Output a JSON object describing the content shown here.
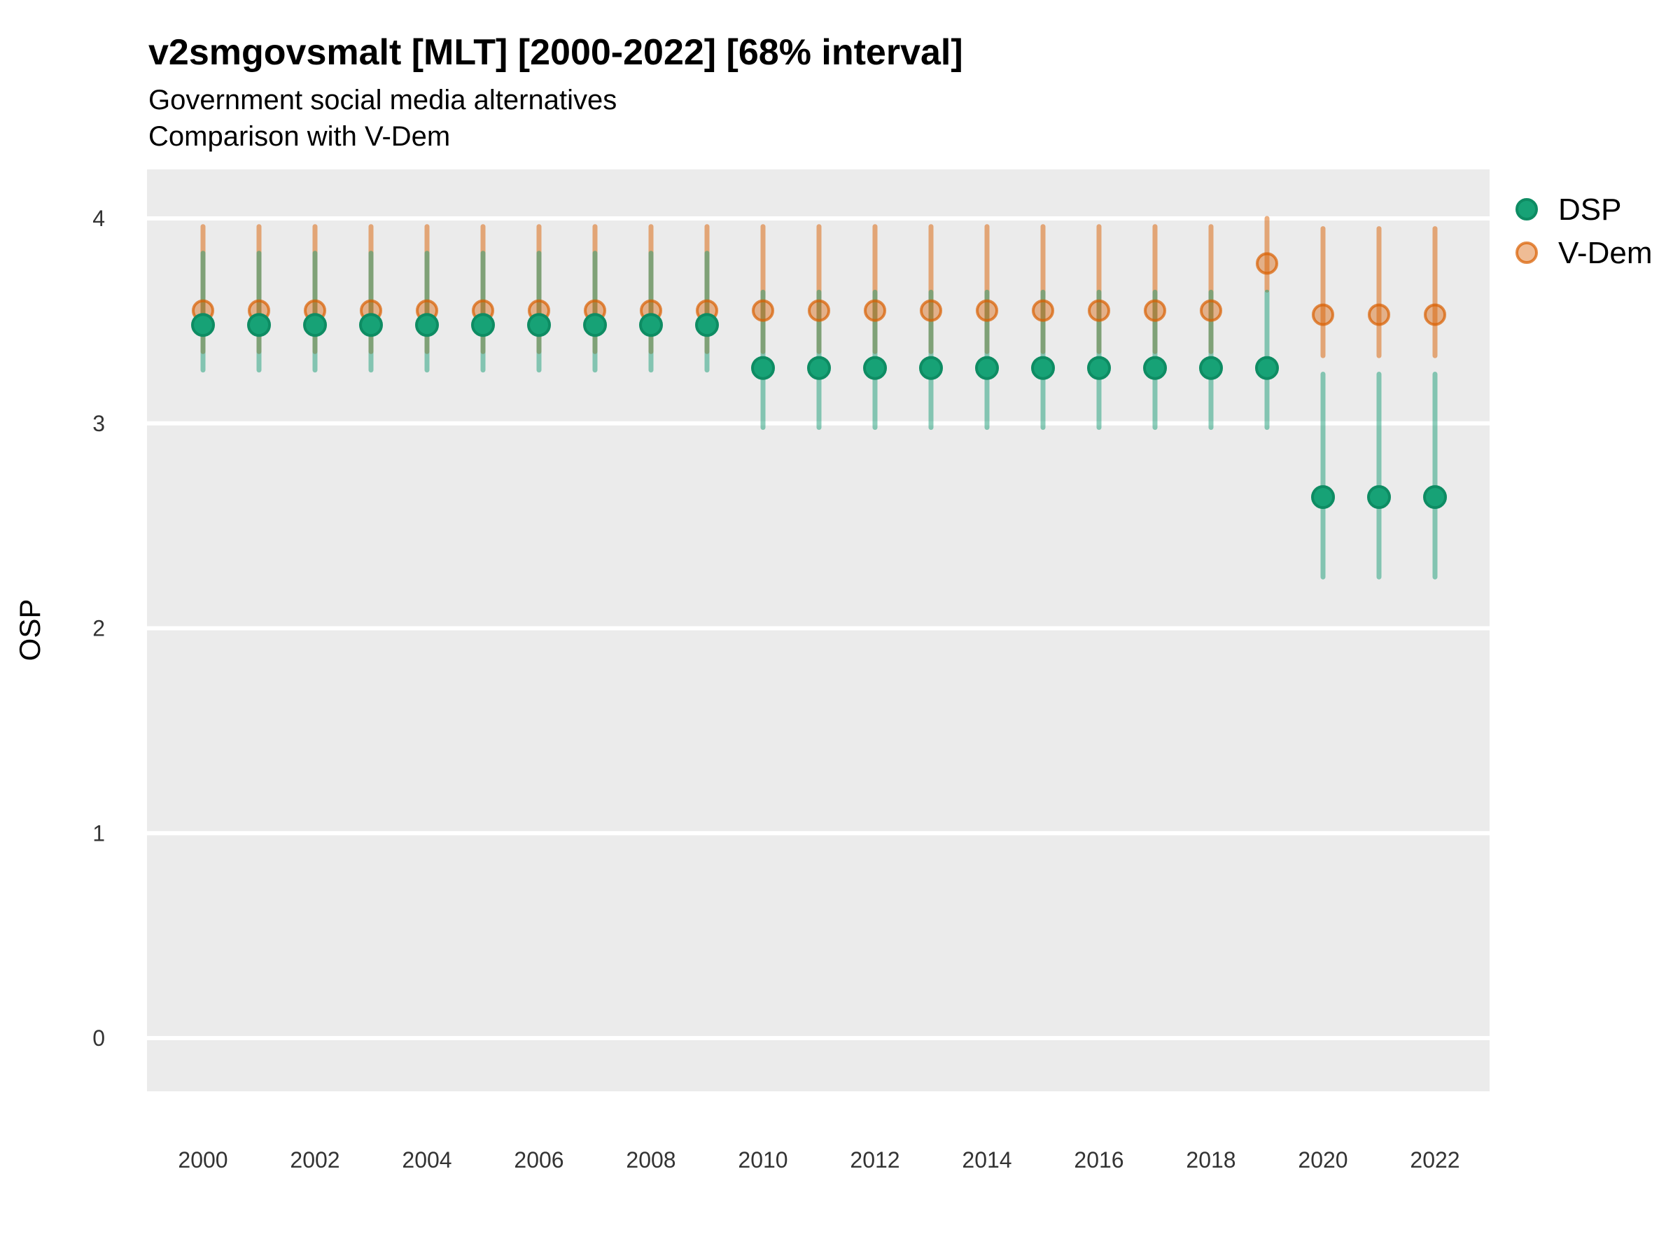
{
  "title": "v2smgovsmalt [MLT] [2000-2022] [68% interval]",
  "subtitle_line1": "Government social media alternatives",
  "subtitle_line2": "Comparison with V-Dem",
  "legend": {
    "items": [
      {
        "label": "DSP"
      },
      {
        "label": "V-Dem"
      }
    ]
  },
  "colors": {
    "dsp": "#1B9E77",
    "vdem": "#D95F02",
    "dsp_bar": "rgba(27,158,119,0.5)",
    "vdem_bar": "rgba(217,95,2,0.5)",
    "dsp_point_fill": "#17A276",
    "dsp_point_stroke": "#0E8C63",
    "vdem_point_fill": "rgba(217,95,2,0.42)",
    "vdem_point_stroke": "rgba(217,95,2,0.72)",
    "panel_bg": "#EBEBEB",
    "gridline": "#FFFFFF",
    "axis_text": "#333333"
  },
  "chart_data": {
    "type": "pointrange",
    "title": "v2smgovsmalt [MLT] [2000-2022] [68% interval]",
    "subtitle": [
      "Government social media alternatives",
      "Comparison with V-Dem"
    ],
    "xlabel": "",
    "ylabel": "OSP",
    "interval": "68%",
    "grid": "horizontal-only",
    "legend_position": "right-top",
    "ylim": [
      -0.26,
      4.24
    ],
    "yticks": [
      0,
      1,
      2,
      3,
      4
    ],
    "xticks": [
      2000,
      2002,
      2004,
      2006,
      2008,
      2010,
      2012,
      2014,
      2016,
      2018,
      2020,
      2022
    ],
    "x": [
      2000,
      2001,
      2002,
      2003,
      2004,
      2005,
      2006,
      2007,
      2008,
      2009,
      2010,
      2011,
      2012,
      2013,
      2014,
      2015,
      2016,
      2017,
      2018,
      2019,
      2020,
      2021,
      2022
    ],
    "series": [
      {
        "name": "DSP",
        "est": [
          3.48,
          3.48,
          3.48,
          3.48,
          3.48,
          3.48,
          3.48,
          3.48,
          3.48,
          3.48,
          3.27,
          3.27,
          3.27,
          3.27,
          3.27,
          3.27,
          3.27,
          3.27,
          3.27,
          3.27,
          2.64,
          2.64,
          2.64
        ],
        "lo": [
          3.26,
          3.26,
          3.26,
          3.26,
          3.26,
          3.26,
          3.26,
          3.26,
          3.26,
          3.26,
          2.98,
          2.98,
          2.98,
          2.98,
          2.98,
          2.98,
          2.98,
          2.98,
          2.98,
          2.98,
          2.25,
          2.25,
          2.25
        ],
        "hi": [
          3.83,
          3.83,
          3.83,
          3.83,
          3.83,
          3.83,
          3.83,
          3.83,
          3.83,
          3.83,
          3.64,
          3.64,
          3.64,
          3.64,
          3.64,
          3.64,
          3.64,
          3.64,
          3.64,
          3.64,
          3.24,
          3.24,
          3.24
        ]
      },
      {
        "name": "V-Dem",
        "est": [
          3.55,
          3.55,
          3.55,
          3.55,
          3.55,
          3.55,
          3.55,
          3.55,
          3.55,
          3.55,
          3.55,
          3.55,
          3.55,
          3.55,
          3.55,
          3.55,
          3.55,
          3.55,
          3.55,
          3.78,
          3.53,
          3.53,
          3.53
        ],
        "lo": [
          3.35,
          3.35,
          3.35,
          3.35,
          3.35,
          3.35,
          3.35,
          3.35,
          3.35,
          3.35,
          3.35,
          3.35,
          3.35,
          3.35,
          3.35,
          3.35,
          3.35,
          3.35,
          3.35,
          3.65,
          3.33,
          3.33,
          3.33
        ],
        "hi": [
          3.96,
          3.96,
          3.96,
          3.96,
          3.96,
          3.96,
          3.96,
          3.96,
          3.96,
          3.96,
          3.96,
          3.96,
          3.96,
          3.96,
          3.96,
          3.96,
          3.96,
          3.96,
          3.96,
          4.0,
          3.95,
          3.95,
          3.95
        ]
      }
    ]
  }
}
